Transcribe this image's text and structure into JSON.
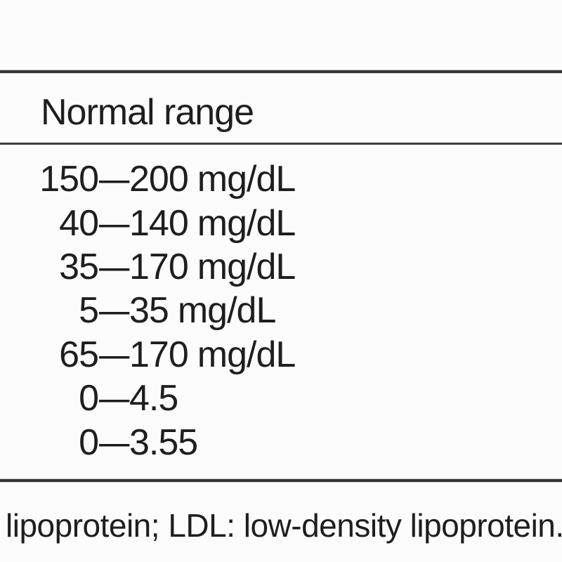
{
  "colors": {
    "background": "#fcfcfc",
    "text": "#1e1e1e",
    "rule": "#333333"
  },
  "table": {
    "header": "Normal range",
    "dash": "–",
    "rows": [
      {
        "low": "150",
        "high": "200",
        "unit": "mg/dL"
      },
      {
        "low": "40",
        "high": "140",
        "unit": "mg/dL"
      },
      {
        "low": "35",
        "high": "170",
        "unit": "mg/dL"
      },
      {
        "low": "5",
        "high": "35",
        "unit": "mg/dL"
      },
      {
        "low": "65",
        "high": "170",
        "unit": "mg/dL"
      },
      {
        "low": "0",
        "high": "4.5",
        "unit": ""
      },
      {
        "low": "0",
        "high": "3.55",
        "unit": ""
      }
    ]
  },
  "footnote": {
    "text": "lipoprotein; LDL: low-density lipoprotein."
  },
  "chart_data": {
    "type": "table",
    "columns": [
      "Normal range"
    ],
    "rows": [
      "150–200 mg/dL",
      "40–140 mg/dL",
      "35–170 mg/dL",
      "5–35 mg/dL",
      "65–170 mg/dL",
      "0–4.5",
      "0–3.55"
    ],
    "footnote": "lipoprotein; LDL: low-density lipoprotein."
  }
}
